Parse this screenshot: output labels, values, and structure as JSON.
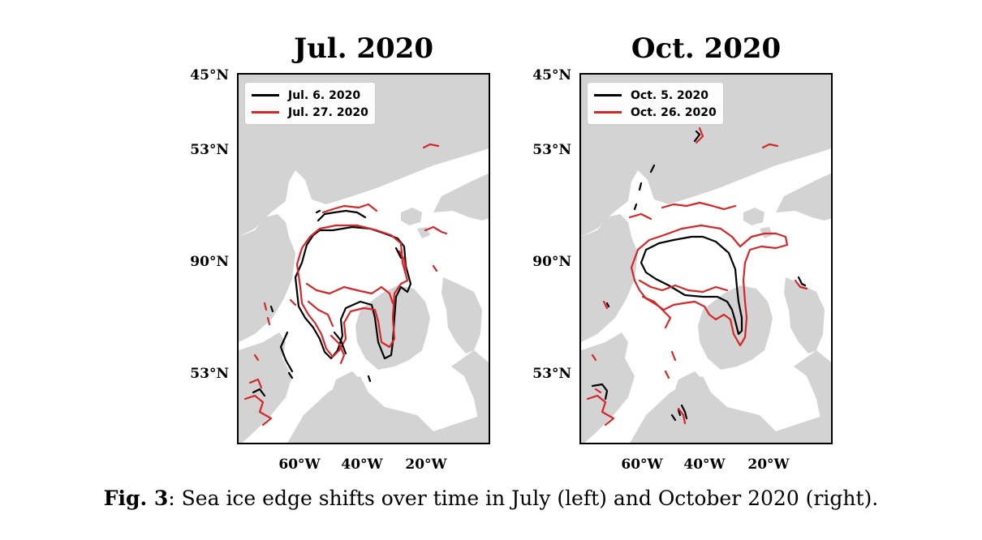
{
  "figure_label": "Fig. 3",
  "caption": ": Sea ice edge shifts over time in July (left) and October 2020 (right).",
  "colors": {
    "land": "#d3d3d3",
    "ocean": "#ffffff",
    "early_edge": "#000000",
    "late_edge": "#d62728"
  },
  "panels": [
    {
      "title": "Jul. 2020",
      "lat_labels": [
        "45°N",
        "53°N",
        "90°N",
        "53°N"
      ],
      "lon_labels": [
        "60°W",
        "40°W",
        "20°W"
      ],
      "legend": [
        {
          "label": "Jul. 6. 2020",
          "color": "#000000"
        },
        {
          "label": "Jul. 27. 2020",
          "color": "#d62728"
        }
      ]
    },
    {
      "title": "Oct. 2020",
      "lat_labels": [
        "45°N",
        "53°N",
        "90°N",
        "53°N"
      ],
      "lon_labels": [
        "60°W",
        "40°W",
        "20°W"
      ],
      "legend": [
        {
          "label": "Oct. 5. 2020",
          "color": "#000000"
        },
        {
          "label": "Oct. 26. 2020",
          "color": "#d62728"
        }
      ]
    }
  ]
}
